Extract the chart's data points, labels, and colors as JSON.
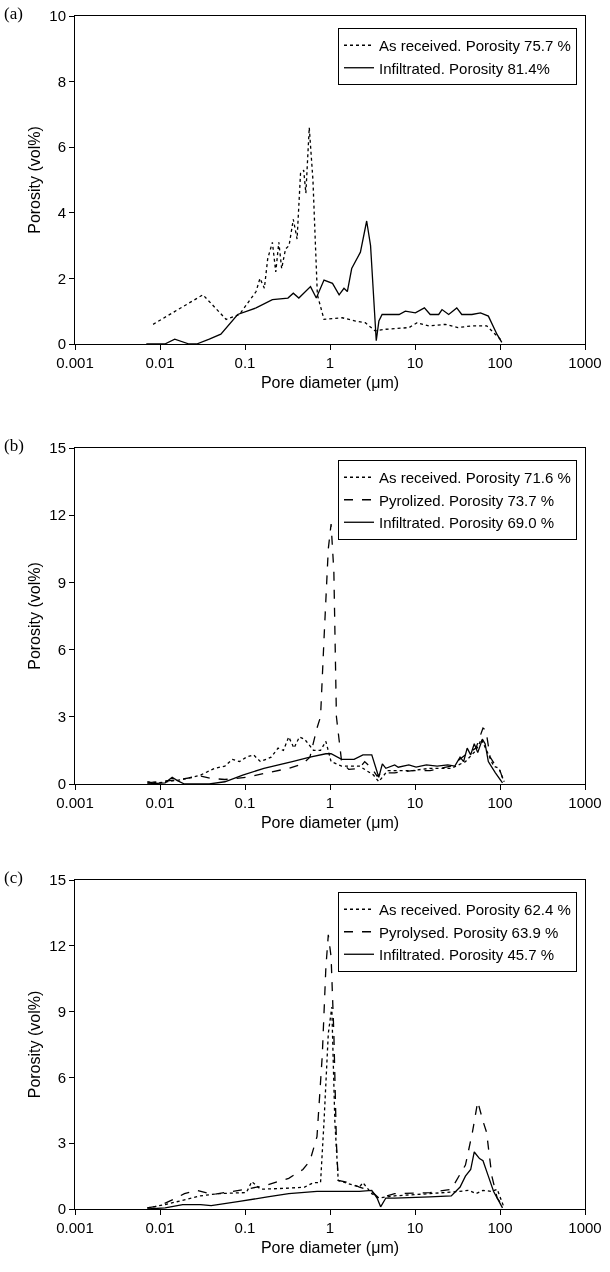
{
  "chart_data": [
    {
      "type": "line",
      "title": "(a)",
      "xlabel": "Pore diameter (μm)",
      "ylabel": "Porosity (vol%)",
      "log": "x",
      "xlim": [
        0.001,
        1000
      ],
      "xticks": [
        0.001,
        0.01,
        0.1,
        1,
        10,
        100,
        1000
      ],
      "ylim": [
        0,
        10
      ],
      "yticks": [
        0,
        2,
        4,
        6,
        8,
        10
      ],
      "grid": false,
      "legend": "top right",
      "marker": "none",
      "series": [
        {
          "name": "As received. Porosity 75.7 %",
          "color": "#000000",
          "line_style": "dotted",
          "x": [
            0.0083,
            0.032,
            0.06,
            0.086,
            0.135,
            0.15,
            0.169,
            0.185,
            0.21,
            0.23,
            0.25,
            0.27,
            0.3,
            0.33,
            0.37,
            0.41,
            0.45,
            0.49,
            0.52,
            0.57,
            0.63,
            0.71,
            0.85,
            1.39,
            2.0,
            2.6,
            3.4,
            4.5,
            8.5,
            10.6,
            14.5,
            22.7,
            32,
            46,
            70,
            105
          ],
          "values": [
            0.6,
            1.5,
            0.75,
            0.9,
            1.6,
            2.0,
            1.7,
            2.6,
            3.1,
            2.2,
            3.1,
            2.3,
            2.9,
            3.0,
            3.8,
            3.2,
            5.2,
            5.3,
            4.6,
            6.6,
            5.0,
            1.5,
            0.75,
            0.8,
            0.7,
            0.65,
            0.4,
            0.45,
            0.5,
            0.65,
            0.55,
            0.6,
            0.5,
            0.55,
            0.55,
            0.1
          ]
        },
        {
          "name": "Infiltrated. Porosity 81.4%",
          "color": "#000000",
          "line_style": "solid",
          "x": [
            0.0069,
            0.0114,
            0.0149,
            0.022,
            0.027,
            0.038,
            0.052,
            0.082,
            0.135,
            0.21,
            0.32,
            0.37,
            0.43,
            0.59,
            0.69,
            0.85,
            1.07,
            1.28,
            1.46,
            1.6,
            1.8,
            2.28,
            2.7,
            3.0,
            3.5,
            3.76,
            4.1,
            6.5,
            7.7,
            10.1,
            12.9,
            15.1,
            19.0,
            20.8,
            24.9,
            31,
            35.5,
            46.7,
            59,
            73,
            92,
            105
          ],
          "values": [
            0,
            0,
            0.15,
            0,
            0,
            0.15,
            0.3,
            0.9,
            1.1,
            1.35,
            1.4,
            1.55,
            1.4,
            1.75,
            1.4,
            1.95,
            1.85,
            1.5,
            1.7,
            1.6,
            2.3,
            2.8,
            3.75,
            3.0,
            0.1,
            0.7,
            0.9,
            0.9,
            1.0,
            0.95,
            1.1,
            0.9,
            0.9,
            1.05,
            0.9,
            1.1,
            0.9,
            0.9,
            0.95,
            0.85,
            0.3,
            0.05
          ]
        }
      ]
    },
    {
      "type": "line",
      "title": "(b)",
      "xlabel": "Pore diameter (μm)",
      "ylabel": "Porosity (vol%)",
      "log": "x",
      "xlim": [
        0.001,
        1000
      ],
      "xticks": [
        0.001,
        0.01,
        0.1,
        1,
        10,
        100,
        1000
      ],
      "ylim": [
        0,
        15
      ],
      "yticks": [
        0,
        3,
        6,
        9,
        12,
        15
      ],
      "grid": false,
      "legend": "top right",
      "marker": "none",
      "series": [
        {
          "name": "As received. Porosity 71.6 %",
          "color": "#000000",
          "line_style": "dotted",
          "x": [
            0.0071,
            0.0095,
            0.0185,
            0.03,
            0.044,
            0.058,
            0.071,
            0.086,
            0.104,
            0.126,
            0.152,
            0.203,
            0.245,
            0.283,
            0.327,
            0.377,
            0.436,
            0.503,
            0.64,
            0.774,
            0.894,
            1.03,
            1.37,
            2.22,
            3.25,
            3.75,
            4.76,
            9.31,
            15.0,
            26.7,
            39.2,
            52.1,
            60.3,
            69.5,
            84.1,
            97.2,
            112
          ],
          "values": [
            0.1,
            0.05,
            0.2,
            0.4,
            0.7,
            0.8,
            1.1,
            1.0,
            1.2,
            1.3,
            1.0,
            1.2,
            1.6,
            1.5,
            2.1,
            1.6,
            2.1,
            2.0,
            1.5,
            1.5,
            1.9,
            1.0,
            0.8,
            0.8,
            0.4,
            0.1,
            0.6,
            0.6,
            0.7,
            0.7,
            1.0,
            1.5,
            2.0,
            1.5,
            0.8,
            0.7,
            0.1
          ]
        },
        {
          "name": "Pyrolized. Porosity 73.7 %",
          "color": "#000000",
          "line_style": "dashed",
          "x": [
            0.0071,
            0.0168,
            0.03,
            0.04,
            0.058,
            0.104,
            0.184,
            0.327,
            0.48,
            0.581,
            0.703,
            0.774,
            0.851,
            0.955,
            1.03,
            1.11,
            1.19,
            1.37,
            1.66,
            2.22,
            2.56,
            3.1,
            3.58,
            4.13,
            5.77,
            9.31,
            15.0,
            26.7,
            39.2,
            52.1,
            63.1,
            68.2,
            76.6,
            92.7,
            100,
            112
          ],
          "values": [
            0.05,
            0.2,
            0.35,
            0.25,
            0.2,
            0.3,
            0.5,
            0.7,
            0.9,
            1.2,
            2.5,
            3.0,
            6.5,
            10.5,
            11.6,
            9.5,
            3.0,
            1.0,
            0.65,
            0.7,
            1.0,
            0.7,
            0.35,
            0.5,
            0.5,
            0.6,
            0.6,
            0.8,
            1.3,
            1.6,
            2.5,
            2.4,
            1.2,
            0.7,
            0.6,
            0.05
          ]
        },
        {
          "name": "Infiltrated. Porosity 69.0 %",
          "color": "#000000",
          "line_style": "solid",
          "x": [
            0.0071,
            0.0115,
            0.0139,
            0.016,
            0.0194,
            0.038,
            0.058,
            0.094,
            0.167,
            0.36,
            0.581,
            0.894,
            1.03,
            1.37,
            1.92,
            2.44,
            3.1,
            3.75,
            4.13,
            4.54,
            5.77,
            6.35,
            8.47,
            10.3,
            13.6,
            18.2,
            24.3,
            29.4,
            33.9,
            37.3,
            41.1,
            45.2,
            49.8,
            54.7,
            62.0,
            66.8,
            72.9,
            88.3,
            107
          ],
          "values": [
            0,
            0.05,
            0.3,
            0.15,
            0,
            0,
            0.1,
            0.4,
            0.7,
            1.0,
            1.2,
            1.35,
            1.35,
            1.1,
            1.1,
            1.3,
            1.3,
            0.3,
            0.9,
            0.7,
            0.85,
            0.75,
            0.85,
            0.75,
            0.85,
            0.8,
            0.85,
            0.8,
            1.2,
            1.0,
            1.6,
            1.3,
            1.8,
            1.4,
            2.0,
            1.8,
            1.0,
            0.5,
            0.05
          ]
        }
      ]
    },
    {
      "type": "line",
      "title": "(c)",
      "xlabel": "Pore diameter (μm)",
      "ylabel": "Porosity (vol%)",
      "log": "x",
      "xlim": [
        0.001,
        1000
      ],
      "xticks": [
        0.001,
        0.01,
        0.1,
        1,
        10,
        100,
        1000
      ],
      "ylim": [
        0,
        15
      ],
      "yticks": [
        0,
        3,
        6,
        9,
        12,
        15
      ],
      "grid": false,
      "legend": "top right",
      "marker": "none",
      "series": [
        {
          "name": "As received. Porosity 62.4 %",
          "color": "#000000",
          "line_style": "dotted",
          "x": [
            0.0071,
            0.0115,
            0.03,
            0.048,
            0.104,
            0.12,
            0.152,
            0.327,
            0.503,
            0.64,
            0.774,
            0.851,
            0.955,
            1.05,
            1.14,
            1.25,
            2.22,
            2.44,
            3.1,
            3.75,
            5.77,
            15.0,
            32.3,
            43.1,
            52.1,
            63.1,
            80.2,
            92.7,
            112
          ],
          "values": [
            0.05,
            0.2,
            0.6,
            0.7,
            0.75,
            1.25,
            0.9,
            0.95,
            1.0,
            1.2,
            1.2,
            4.0,
            8.0,
            9.2,
            4.0,
            1.3,
            1.0,
            1.2,
            0.7,
            0.5,
            0.6,
            0.7,
            0.8,
            0.85,
            0.7,
            0.85,
            0.8,
            0.9,
            0.05
          ]
        },
        {
          "name": "Pyrolysed. Porosity 63.9 %",
          "color": "#000000",
          "line_style": "dashed",
          "x": [
            0.0071,
            0.0099,
            0.0146,
            0.0194,
            0.0272,
            0.0345,
            0.04,
            0.058,
            0.104,
            0.184,
            0.327,
            0.48,
            0.581,
            0.703,
            0.811,
            0.894,
            0.955,
            1.03,
            1.11,
            1.19,
            1.25,
            1.66,
            2.22,
            3.1,
            3.75,
            5.77,
            15.0,
            26.7,
            39.2,
            47.4,
            54.7,
            63.1,
            69.5,
            80.2,
            92.7,
            112
          ],
          "values": [
            0.05,
            0.15,
            0.45,
            0.7,
            0.85,
            0.75,
            0.65,
            0.75,
            0.9,
            1.1,
            1.4,
            1.8,
            2.2,
            3.3,
            7.0,
            11.0,
            12.5,
            11.5,
            8.0,
            3.0,
            1.3,
            1.2,
            1.0,
            0.8,
            0.5,
            0.7,
            0.75,
            0.9,
            2.0,
            3.5,
            4.9,
            4.0,
            3.5,
            1.5,
            0.5,
            0.05
          ]
        },
        {
          "name": "Infiltrated. Porosity 45.7 %",
          "color": "#000000",
          "line_style": "solid",
          "x": [
            0.0071,
            0.0115,
            0.0185,
            0.03,
            0.04,
            0.086,
            0.184,
            0.327,
            0.703,
            2.22,
            3.1,
            3.58,
            3.94,
            4.54,
            5.77,
            15.0,
            26.7,
            33.9,
            39.2,
            45.2,
            49.8,
            57.4,
            63.1,
            72.9,
            84.1,
            107
          ],
          "values": [
            0,
            0.05,
            0.2,
            0.2,
            0.15,
            0.35,
            0.55,
            0.7,
            0.8,
            0.8,
            0.85,
            0.5,
            0.1,
            0.5,
            0.5,
            0.55,
            0.6,
            1.0,
            1.5,
            1.8,
            2.6,
            2.3,
            2.2,
            1.5,
            0.8,
            0.05
          ]
        }
      ]
    }
  ]
}
